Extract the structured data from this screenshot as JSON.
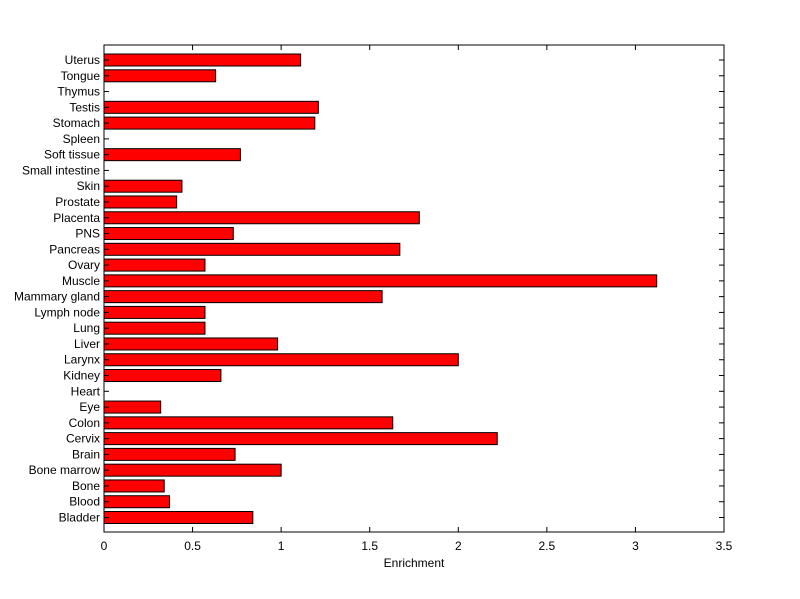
{
  "chart_data": {
    "type": "bar",
    "orientation": "horizontal",
    "title": "",
    "xlabel": "Enrichment",
    "ylabel": "",
    "xlim": [
      0,
      3.5
    ],
    "xticks": [
      0,
      0.5,
      1,
      1.5,
      2,
      2.5,
      3,
      3.5
    ],
    "xtick_labels": [
      "0",
      "0.5",
      "1",
      "1.5",
      "2",
      "2.5",
      "3",
      "3.5"
    ],
    "grid": false,
    "bar_color": "#ff0000",
    "bar_edge_color": "#000000",
    "categories": [
      "Bladder",
      "Blood",
      "Bone",
      "Bone marrow",
      "Brain",
      "Cervix",
      "Colon",
      "Eye",
      "Heart",
      "Kidney",
      "Larynx",
      "Liver",
      "Lung",
      "Lymph node",
      "Mammary gland",
      "Muscle",
      "Ovary",
      "Pancreas",
      "PNS",
      "Placenta",
      "Prostate",
      "Skin",
      "Small intestine",
      "Soft tissue",
      "Spleen",
      "Stomach",
      "Testis",
      "Thymus",
      "Tongue",
      "Uterus"
    ],
    "values": [
      0.84,
      0.37,
      0.34,
      1.0,
      0.74,
      2.22,
      1.63,
      0.32,
      0,
      0.66,
      2.0,
      0.98,
      0.57,
      0.57,
      1.57,
      3.12,
      0.57,
      1.67,
      0.73,
      1.78,
      0.41,
      0.44,
      0,
      0.77,
      0,
      1.19,
      1.21,
      0,
      0.63,
      1.11
    ]
  }
}
